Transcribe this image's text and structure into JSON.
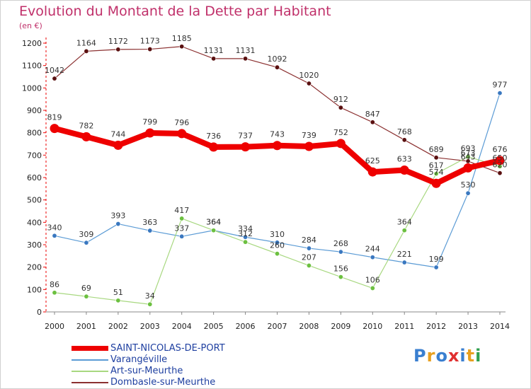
{
  "title": "Evolution du Montant de la Dette par Habitant",
  "unit_label": "(en €)",
  "logo": {
    "text": "Proxiti",
    "letters": [
      "P",
      "r",
      "o",
      "x",
      "i",
      "t",
      "i"
    ],
    "colors": [
      "#3a7fd0",
      "#e8a020",
      "#3a7fd0",
      "#e03030",
      "#3a7fd0",
      "#e8a020",
      "#30a050"
    ]
  },
  "chart_data": {
    "type": "line",
    "title": "Evolution du Montant de la Dette par Habitant",
    "ylabel": "(en €)",
    "xlabel": "",
    "x": [
      "2000",
      "2001",
      "2002",
      "2003",
      "2004",
      "2005",
      "2006",
      "2007",
      "2008",
      "2009",
      "2010",
      "2011",
      "2012",
      "2013",
      "2014"
    ],
    "yticks": [
      "0",
      "100",
      "200",
      "300",
      "400",
      "500",
      "600",
      "700",
      "800",
      "900",
      "1000",
      "1100",
      "1200"
    ],
    "ylim": [
      0,
      1200
    ],
    "grid": false,
    "legend_position": "bottom-left",
    "series": [
      {
        "name": "Dombasle-sur-Meurthe",
        "color": "#8b3030",
        "marker": "#5a1010",
        "width": 1.2,
        "values": [
          1042,
          1164,
          1172,
          1173,
          1185,
          1131,
          1131,
          1092,
          1020,
          912,
          847,
          768,
          689,
          673,
          620
        ],
        "labels": [
          "1042",
          "1164",
          "1172",
          "1173",
          "1185",
          "1131",
          "1131",
          "1092",
          "1020",
          "912",
          "847",
          "768",
          "689",
          "673",
          "620"
        ]
      },
      {
        "name": "Varangéville",
        "color": "#5b9bd5",
        "marker": "#3a78c0",
        "width": 1.2,
        "values": [
          340,
          309,
          393,
          363,
          337,
          364,
          334,
          310,
          284,
          268,
          244,
          221,
          199,
          530,
          977
        ],
        "labels": [
          "340",
          "309",
          "393",
          "363",
          "337",
          "364",
          "334",
          "310",
          "284",
          "268",
          "244",
          "221",
          "199",
          "530",
          "977"
        ]
      },
      {
        "name": "Art-sur-Meurthe",
        "color": "#a8d880",
        "marker": "#6cc040",
        "width": 1.2,
        "values": [
          86,
          69,
          51,
          34,
          417,
          364,
          312,
          260,
          207,
          156,
          106,
          364,
          617,
          693,
          650
        ],
        "labels": [
          "86",
          "69",
          "51",
          "34",
          "417",
          "364",
          "312",
          "260",
          "207",
          "156",
          "106",
          "364",
          "617",
          "693",
          "650"
        ]
      },
      {
        "name": "SAINT-NICOLAS-DE-PORT",
        "color": "#ee0000",
        "marker": "#ee0000",
        "width": 8,
        "values": [
          819,
          782,
          744,
          799,
          796,
          736,
          737,
          743,
          739,
          752,
          625,
          633,
          574,
          643,
          676
        ],
        "labels": [
          "819",
          "782",
          "744",
          "799",
          "796",
          "736",
          "737",
          "743",
          "739",
          "752",
          "625",
          "633",
          "574",
          "643",
          "676"
        ]
      }
    ],
    "legend": [
      {
        "name": "SAINT-NICOLAS-DE-PORT",
        "color": "#ee0000",
        "thick": true
      },
      {
        "name": "Varangéville",
        "color": "#5b9bd5",
        "thick": false
      },
      {
        "name": "Art-sur-Meurthe",
        "color": "#a8d880",
        "thick": false
      },
      {
        "name": "Dombasle-sur-Meurthe",
        "color": "#8b3030",
        "thick": false
      }
    ]
  }
}
